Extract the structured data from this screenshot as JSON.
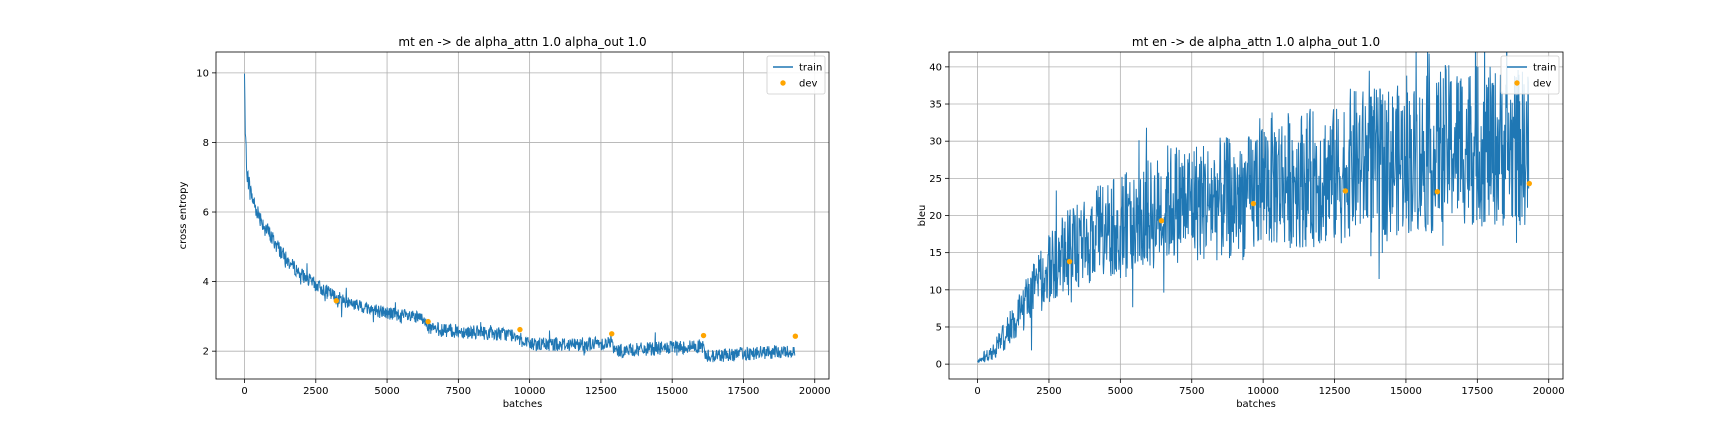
{
  "chart_data": [
    {
      "type": "line",
      "title": "mt en -> de alpha_attn 1.0 alpha_out 1.0",
      "xlabel": "batches",
      "ylabel": "cross entropy",
      "xlim": [
        -1000,
        20500
      ],
      "ylim": [
        1.2,
        10.6
      ],
      "xticks": [
        0,
        2500,
        5000,
        7500,
        10000,
        12500,
        15000,
        17500,
        20000
      ],
      "yticks": [
        2,
        4,
        6,
        8,
        10
      ],
      "grid": true,
      "legend": {
        "position": "top-right",
        "entries": [
          "train",
          "dev"
        ]
      },
      "colors": {
        "train": "#1f77b4",
        "dev": "#ffa500"
      },
      "series": [
        {
          "name": "train",
          "kind": "line",
          "x": [
            0,
            20,
            50,
            100,
            200,
            400,
            700,
            1000,
            1500,
            2000,
            2500,
            3000,
            3200,
            3500,
            4000,
            5000,
            6000,
            6400,
            6450,
            7000,
            8000,
            9000,
            9700,
            9750,
            10000,
            11000,
            12000,
            12900,
            12950,
            14000,
            15000,
            16100,
            16150,
            17000,
            18000,
            19300
          ],
          "y": [
            10.1,
            8.4,
            7.7,
            7.1,
            6.6,
            6.1,
            5.6,
            5.2,
            4.6,
            4.2,
            3.9,
            3.65,
            3.55,
            3.45,
            3.3,
            3.1,
            2.95,
            2.9,
            2.65,
            2.6,
            2.55,
            2.5,
            2.45,
            2.2,
            2.2,
            2.2,
            2.2,
            2.25,
            2.0,
            2.05,
            2.1,
            2.15,
            1.85,
            1.9,
            1.95,
            2.0
          ],
          "spread": [
            0.3,
            0.3,
            0.3,
            0.3,
            0.3,
            0.25,
            0.25,
            0.25,
            0.2,
            0.2,
            0.2,
            0.2,
            0.2,
            0.2,
            0.2,
            0.2,
            0.2,
            0.2,
            0.2,
            0.2,
            0.2,
            0.2,
            0.2,
            0.2,
            0.2,
            0.2,
            0.2,
            0.2,
            0.2,
            0.2,
            0.2,
            0.2,
            0.2,
            0.2,
            0.2,
            0.2
          ]
        },
        {
          "name": "dev",
          "kind": "scatter",
          "x": [
            3220,
            6440,
            9660,
            12880,
            16100,
            19320
          ],
          "y": [
            3.45,
            2.85,
            2.62,
            2.5,
            2.45,
            2.43
          ]
        }
      ]
    },
    {
      "type": "line",
      "title": "mt en -> de alpha_attn 1.0 alpha_out 1.0",
      "xlabel": "batches",
      "ylabel": "bleu",
      "xlim": [
        -1000,
        20500
      ],
      "ylim": [
        -2,
        42
      ],
      "xticks": [
        0,
        2500,
        5000,
        7500,
        10000,
        12500,
        15000,
        17500,
        20000
      ],
      "yticks": [
        0,
        5,
        10,
        15,
        20,
        25,
        30,
        35,
        40
      ],
      "grid": true,
      "legend": {
        "position": "top-right",
        "entries": [
          "train",
          "dev"
        ]
      },
      "colors": {
        "train": "#1f77b4",
        "dev": "#ffa500"
      },
      "series": [
        {
          "name": "train",
          "kind": "line",
          "x": [
            0,
            500,
            1000,
            1500,
            2000,
            2500,
            3000,
            3200,
            3500,
            4000,
            5000,
            6000,
            6400,
            6450,
            7000,
            8000,
            9000,
            9700,
            9750,
            10500,
            11500,
            12800,
            12850,
            14000,
            15000,
            16100,
            16150,
            17000,
            18000,
            19300
          ],
          "y": [
            0.3,
            1.5,
            4,
            7,
            10,
            12.5,
            14.5,
            15,
            16,
            17,
            18.5,
            20,
            20.5,
            21.5,
            21.8,
            22,
            22.3,
            22.5,
            24.5,
            24.8,
            25,
            25.3,
            27,
            27.2,
            27.5,
            27.8,
            29.5,
            29.5,
            29.2,
            29
          ]
        },
        {
          "name": "dev",
          "kind": "scatter",
          "x": [
            3220,
            6440,
            9660,
            12880,
            16100,
            19320
          ],
          "y": [
            13.8,
            19.3,
            21.6,
            23.3,
            23.2,
            24.3
          ]
        }
      ]
    }
  ]
}
